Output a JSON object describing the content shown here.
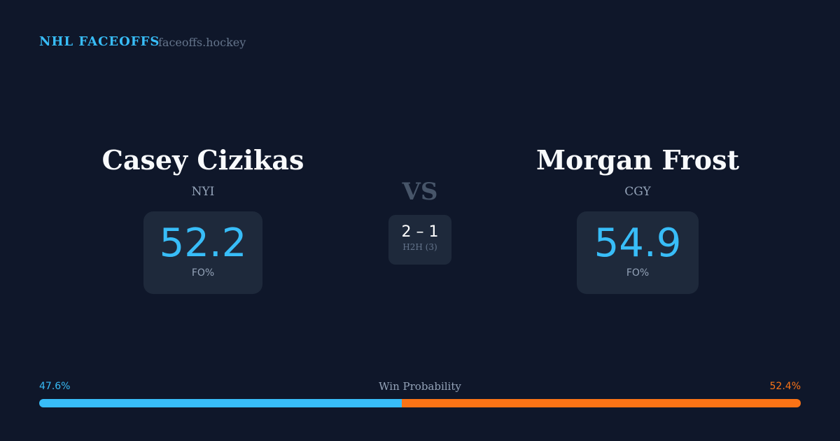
{
  "header": {
    "brand": "NHL FACEOFFS",
    "site": "faceoffs.hockey"
  },
  "left": {
    "name": "Casey Cizikas",
    "team": "NYI",
    "fo_pct": "52.2",
    "fo_label": "FO%"
  },
  "right": {
    "name": "Morgan Frost",
    "team": "CGY",
    "fo_pct": "54.9",
    "fo_label": "FO%"
  },
  "vs": "VS",
  "h2h": {
    "score": "2 – 1",
    "label": "H2H (3)"
  },
  "win_probability": {
    "label": "Win Probability",
    "left_pct": "47.6%",
    "right_pct": "52.4%",
    "left_value": 47.6,
    "right_value": 52.4,
    "left_color": "#38bdf8",
    "right_color": "#f97316"
  }
}
